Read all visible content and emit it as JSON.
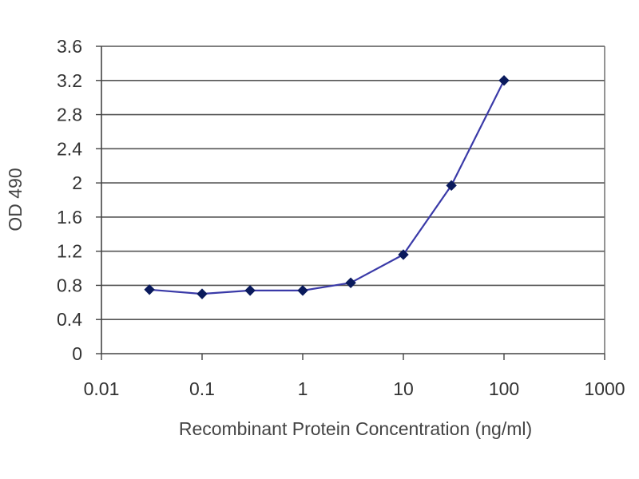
{
  "chart_data": {
    "type": "line",
    "title": "",
    "xlabel": "Recombinant Protein Concentration (ng/ml)",
    "ylabel": "OD 490",
    "x_scale": "log",
    "xlim": [
      0.01,
      1000
    ],
    "ylim": [
      0,
      3.6
    ],
    "x_ticks": [
      "0.01",
      "0.1",
      "1",
      "10",
      "100",
      "1000"
    ],
    "y_ticks": [
      "0",
      "0.4",
      "0.8",
      "1.2",
      "1.6",
      "2",
      "2.4",
      "2.8",
      "3.2",
      "3.6"
    ],
    "grid": true,
    "legend": "none",
    "series": [
      {
        "color": "#3a3aa8",
        "marker_color": "#0a1a5c",
        "points": [
          {
            "x": 0.03,
            "y": 0.75
          },
          {
            "x": 0.1,
            "y": 0.7
          },
          {
            "x": 0.3,
            "y": 0.74
          },
          {
            "x": 1,
            "y": 0.74
          },
          {
            "x": 3,
            "y": 0.83
          },
          {
            "x": 10,
            "y": 1.16
          },
          {
            "x": 30,
            "y": 1.97
          },
          {
            "x": 100,
            "y": 3.2
          }
        ]
      }
    ]
  }
}
